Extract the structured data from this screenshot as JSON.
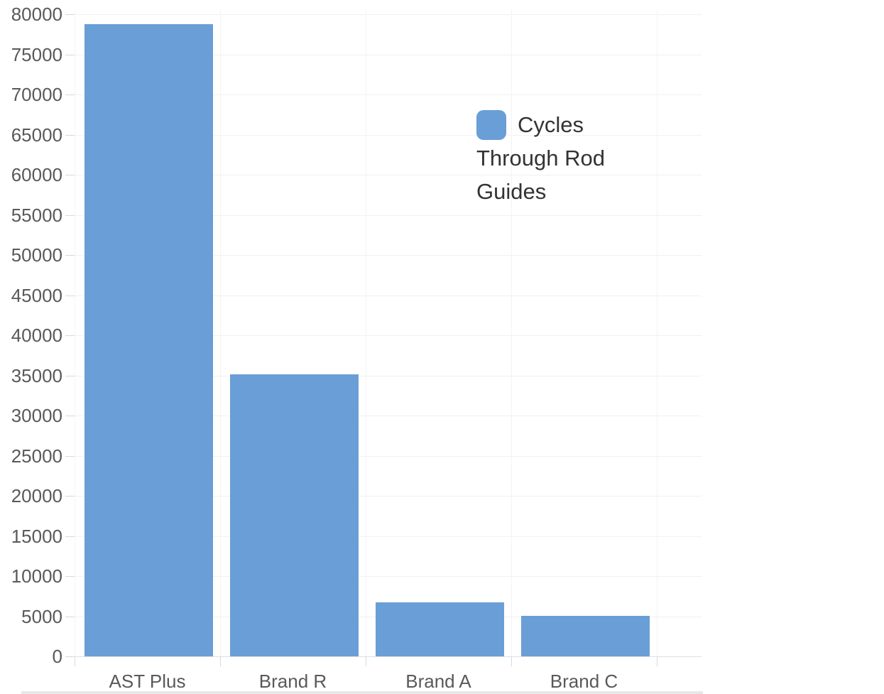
{
  "chart_data": {
    "type": "bar",
    "title": "",
    "xlabel": "",
    "ylabel": "",
    "categories": [
      "AST Plus",
      "Brand R",
      "Brand A",
      "Brand C"
    ],
    "series": [
      {
        "name": "Cycles Through Rod Guides",
        "values": [
          78750,
          35150,
          6750,
          5050
        ]
      }
    ],
    "ylim": [
      0,
      80000
    ],
    "y_tick_step": 5000,
    "y_tick_labels": [
      "0",
      "5000",
      "10000",
      "15000",
      "20000",
      "25000",
      "30000",
      "35000",
      "40000",
      "45000",
      "50000",
      "55000",
      "60000",
      "65000",
      "70000",
      "75000",
      "80000"
    ],
    "grid": true,
    "legend_position": "inside-upper-right",
    "bar_color": "#6a9ed6"
  },
  "legend": {
    "label": "Cycles Through Rod Guides"
  },
  "colors": {
    "bar": "#6a9ed6",
    "axis_text": "#58595b",
    "legend_text": "#333333",
    "gridline": "#f1f1f1",
    "tick": "#d9d9d9",
    "baseline": "#e0e0e0",
    "bottom_strip": "#e8e8e8"
  }
}
